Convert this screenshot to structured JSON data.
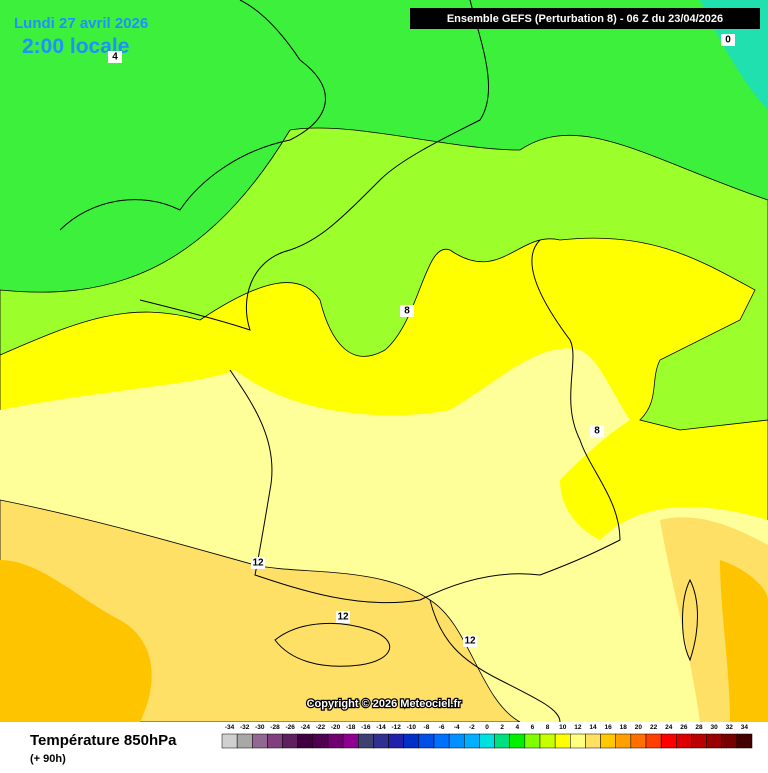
{
  "header": {
    "date": "Lundi 27 avril 2026",
    "time": "2:00 locale",
    "run": "Ensemble GEFS  (Perturbation 8)  -  06 Z du 23/04/2026"
  },
  "map": {
    "contour_labels": [
      "0",
      "4",
      "8",
      "8",
      "12",
      "12",
      "12"
    ],
    "copyright": "Copyright © 2026 Meteociel.fr"
  },
  "footer": {
    "title": "Température 850hPa",
    "lead": "(+ 90h)"
  },
  "legend": {
    "values": [
      -34,
      -32,
      -30,
      -28,
      -26,
      -24,
      -22,
      -20,
      -18,
      -16,
      -14,
      -12,
      -10,
      -8,
      -6,
      -4,
      -2,
      0,
      2,
      4,
      6,
      8,
      10,
      12,
      14,
      16,
      18,
      20,
      22,
      24,
      26,
      28,
      30,
      32,
      34
    ],
    "colors": [
      "#d0d0d0",
      "#a8a8a8",
      "#906890",
      "#804080",
      "#602060",
      "#400040",
      "#500050",
      "#700070",
      "#900090",
      "#404070",
      "#303090",
      "#2020a8",
      "#0030c8",
      "#0050e8",
      "#0070ff",
      "#0090ff",
      "#00b0ff",
      "#00e0e0",
      "#00e080",
      "#00f000",
      "#80ff00",
      "#c8ff00",
      "#ffff00",
      "#ffff80",
      "#ffe060",
      "#ffc800",
      "#ffa000",
      "#ff7000",
      "#ff4000",
      "#ff0000",
      "#dd0000",
      "#bb0000",
      "#990000",
      "#770000",
      "#440000"
    ]
  }
}
